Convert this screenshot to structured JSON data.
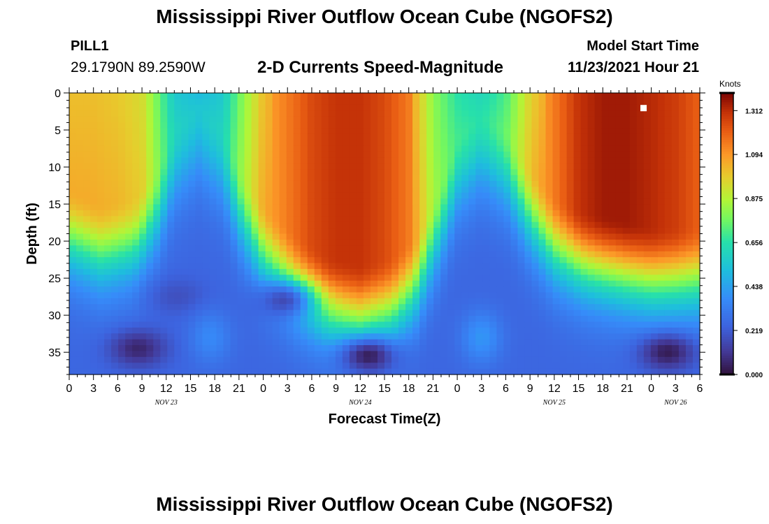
{
  "header": {
    "title": "Mississippi River Outflow Ocean Cube (NGOFS2)",
    "station": "PILL1",
    "coordinates": "29.1790N  89.2590W",
    "subtitle": "2-D Currents Speed-Magnitude",
    "model_start_label": "Model Start Time",
    "model_start_value": "11/23/2021 Hour 21"
  },
  "footer": {
    "title": "Mississippi River Outflow Ocean Cube (NGOFS2)"
  },
  "chart_data": {
    "type": "heatmap",
    "title": "2-D Currents Speed-Magnitude",
    "xlabel": "Forecast Time(Z)",
    "ylabel": "Depth (ft)",
    "x_tick_labels": [
      "0",
      "3",
      "6",
      "9",
      "12",
      "15",
      "18",
      "21",
      "0",
      "3",
      "6",
      "9",
      "12",
      "15",
      "18",
      "21",
      "0",
      "3",
      "6",
      "9",
      "12",
      "15",
      "18",
      "21",
      "0",
      "3",
      "6"
    ],
    "date_labels": [
      {
        "label": "NOV 23",
        "hours": 12
      },
      {
        "label": "NOV 24",
        "hours": 36
      },
      {
        "label": "NOV 25",
        "hours": 60
      },
      {
        "label": "NOV 26",
        "hours": 75
      }
    ],
    "xlim": [
      0,
      78
    ],
    "y_ticks": [
      0,
      5,
      10,
      15,
      20,
      25,
      30,
      35
    ],
    "ylim": [
      0,
      38
    ],
    "y_inverted": true,
    "colorbar": {
      "title": "Knots",
      "ticks": [
        "1.312",
        "1.094",
        "0.875",
        "0.656",
        "0.438",
        "0.219",
        "0.000"
      ],
      "range": [
        0,
        1.4
      ]
    },
    "grid": false,
    "description_values": {
      "surface_speed_by_forecast_hour": [
        [
          0,
          1.05
        ],
        [
          3,
          1.05
        ],
        [
          6,
          1.03
        ],
        [
          9,
          0.98
        ],
        [
          11,
          0.8
        ],
        [
          13,
          0.6
        ],
        [
          16,
          0.55
        ],
        [
          19,
          0.6
        ],
        [
          21,
          0.8
        ],
        [
          24,
          1.05
        ],
        [
          27,
          1.15
        ],
        [
          30,
          1.25
        ],
        [
          33,
          1.3
        ],
        [
          36,
          1.3
        ],
        [
          39,
          1.25
        ],
        [
          42,
          1.15
        ],
        [
          45,
          0.85
        ],
        [
          48,
          0.7
        ],
        [
          51,
          0.65
        ],
        [
          54,
          0.75
        ],
        [
          57,
          1.0
        ],
        [
          60,
          1.15
        ],
        [
          63,
          1.3
        ],
        [
          66,
          1.35
        ],
        [
          69,
          1.35
        ],
        [
          72,
          1.32
        ],
        [
          75,
          1.28
        ],
        [
          78,
          1.2
        ]
      ],
      "strong_layer_depth_ft_by_forecast_hour": [
        [
          0,
          13
        ],
        [
          4,
          15
        ],
        [
          8,
          14
        ],
        [
          11,
          10
        ],
        [
          13,
          5
        ],
        [
          16,
          2
        ],
        [
          19,
          5
        ],
        [
          21,
          10
        ],
        [
          24,
          15
        ],
        [
          28,
          19
        ],
        [
          32,
          22
        ],
        [
          36,
          23
        ],
        [
          40,
          22
        ],
        [
          43,
          19
        ],
        [
          46,
          12
        ],
        [
          48,
          6
        ],
        [
          51,
          3
        ],
        [
          54,
          5
        ],
        [
          57,
          10
        ],
        [
          60,
          14
        ],
        [
          64,
          16
        ],
        [
          68,
          17
        ],
        [
          72,
          18
        ],
        [
          76,
          18
        ],
        [
          78,
          18
        ]
      ],
      "bottom_minimum_speed": [
        {
          "hours": 8.5,
          "depth": 34.5,
          "speed": 0.05
        },
        {
          "hours": 13.5,
          "depth": 27.5,
          "speed": 0.18
        },
        {
          "hours": 26.5,
          "depth": 28,
          "speed": 0.15
        },
        {
          "hours": 37,
          "depth": 35.5,
          "speed": 0.02
        },
        {
          "hours": 74,
          "depth": 35,
          "speed": 0.02
        }
      ],
      "bottom_local_maximum": [
        {
          "hours": 17.5,
          "depth": 33,
          "speed": 0.38
        },
        {
          "hours": 51,
          "depth": 33,
          "speed": 0.42
        }
      ]
    }
  }
}
